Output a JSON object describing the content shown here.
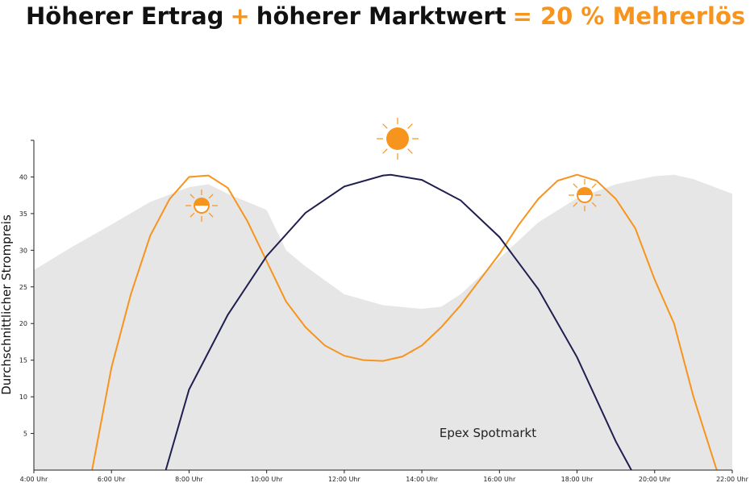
{
  "chart_data": {
    "type": "line",
    "title_parts": [
      "Höherer Ertrag",
      "+",
      "höherer Marktwert",
      "= 20 % Mehrerlös"
    ],
    "title_colors": [
      "#111111",
      "#f7941d",
      "#111111",
      "#f7941d"
    ],
    "ylabel": "Durchschnittlicher Strompreis",
    "annotation": "Epex Spotmarkt",
    "xlim": [
      4,
      22
    ],
    "xticks": [
      {
        "value": 4,
        "label": "4:00 Uhr"
      },
      {
        "value": 6,
        "label": "6:00 Uhr"
      },
      {
        "value": 8,
        "label": "8:00 Uhr"
      },
      {
        "value": 10,
        "label": "10:00 Uhr"
      },
      {
        "value": 12,
        "label": "12:00 Uhr"
      },
      {
        "value": 14,
        "label": "14:00 Uhr"
      },
      {
        "value": 16,
        "label": "16:00 Uhr"
      },
      {
        "value": 18,
        "label": "18:00 Uhr"
      },
      {
        "value": 20,
        "label": "20:00 Uhr"
      },
      {
        "value": 22,
        "label": "22:00 Uhr"
      }
    ],
    "ylim": [
      0,
      45
    ],
    "yticks": [
      5,
      10,
      15,
      20,
      25,
      30,
      35,
      40
    ],
    "area": {
      "color": "#e6e6e6",
      "x": [
        4,
        5,
        6,
        7,
        8,
        8.5,
        9,
        10,
        10.5,
        11,
        12,
        13,
        14,
        14.5,
        15,
        16,
        17,
        18,
        19,
        20,
        20.5,
        21,
        22
      ],
      "values": [
        27.3,
        30.5,
        33.5,
        36.6,
        38.6,
        39,
        37.7,
        35.5,
        30,
        27.8,
        24,
        22.5,
        22,
        22.3,
        24,
        28.9,
        33.8,
        37.1,
        39,
        40.1,
        40.3,
        39.7,
        37.7
      ]
    },
    "series": [
      {
        "color": "#f7941d",
        "x": [
          5.5,
          6,
          6.5,
          7,
          7.5,
          8,
          8.5,
          9,
          9.5,
          10,
          10.5,
          11,
          11.5,
          12,
          12.5,
          13,
          13.5,
          14,
          14.5,
          15,
          15.5,
          16,
          16.5,
          17,
          17.5,
          18,
          18.5,
          19,
          19.5,
          20,
          20.5,
          21,
          21.6
        ],
        "values": [
          0,
          14,
          24,
          32,
          37,
          40,
          40.2,
          38.5,
          34,
          28.5,
          23,
          19.5,
          17,
          15.6,
          15,
          14.9,
          15.5,
          17,
          19.5,
          22.5,
          26,
          29.5,
          33.5,
          37,
          39.5,
          40.3,
          39.5,
          37,
          33,
          26,
          20,
          10,
          0
        ]
      },
      {
        "color": "#1f1f4f",
        "x": [
          7.4,
          8,
          9,
          10,
          11,
          12,
          13,
          13.2,
          14,
          15,
          16,
          17,
          18,
          19,
          19.4
        ],
        "values": [
          0,
          11,
          21.2,
          29.2,
          35.1,
          38.7,
          40.2,
          40.3,
          39.6,
          36.8,
          31.8,
          24.7,
          15.4,
          3.9,
          0
        ]
      }
    ]
  }
}
